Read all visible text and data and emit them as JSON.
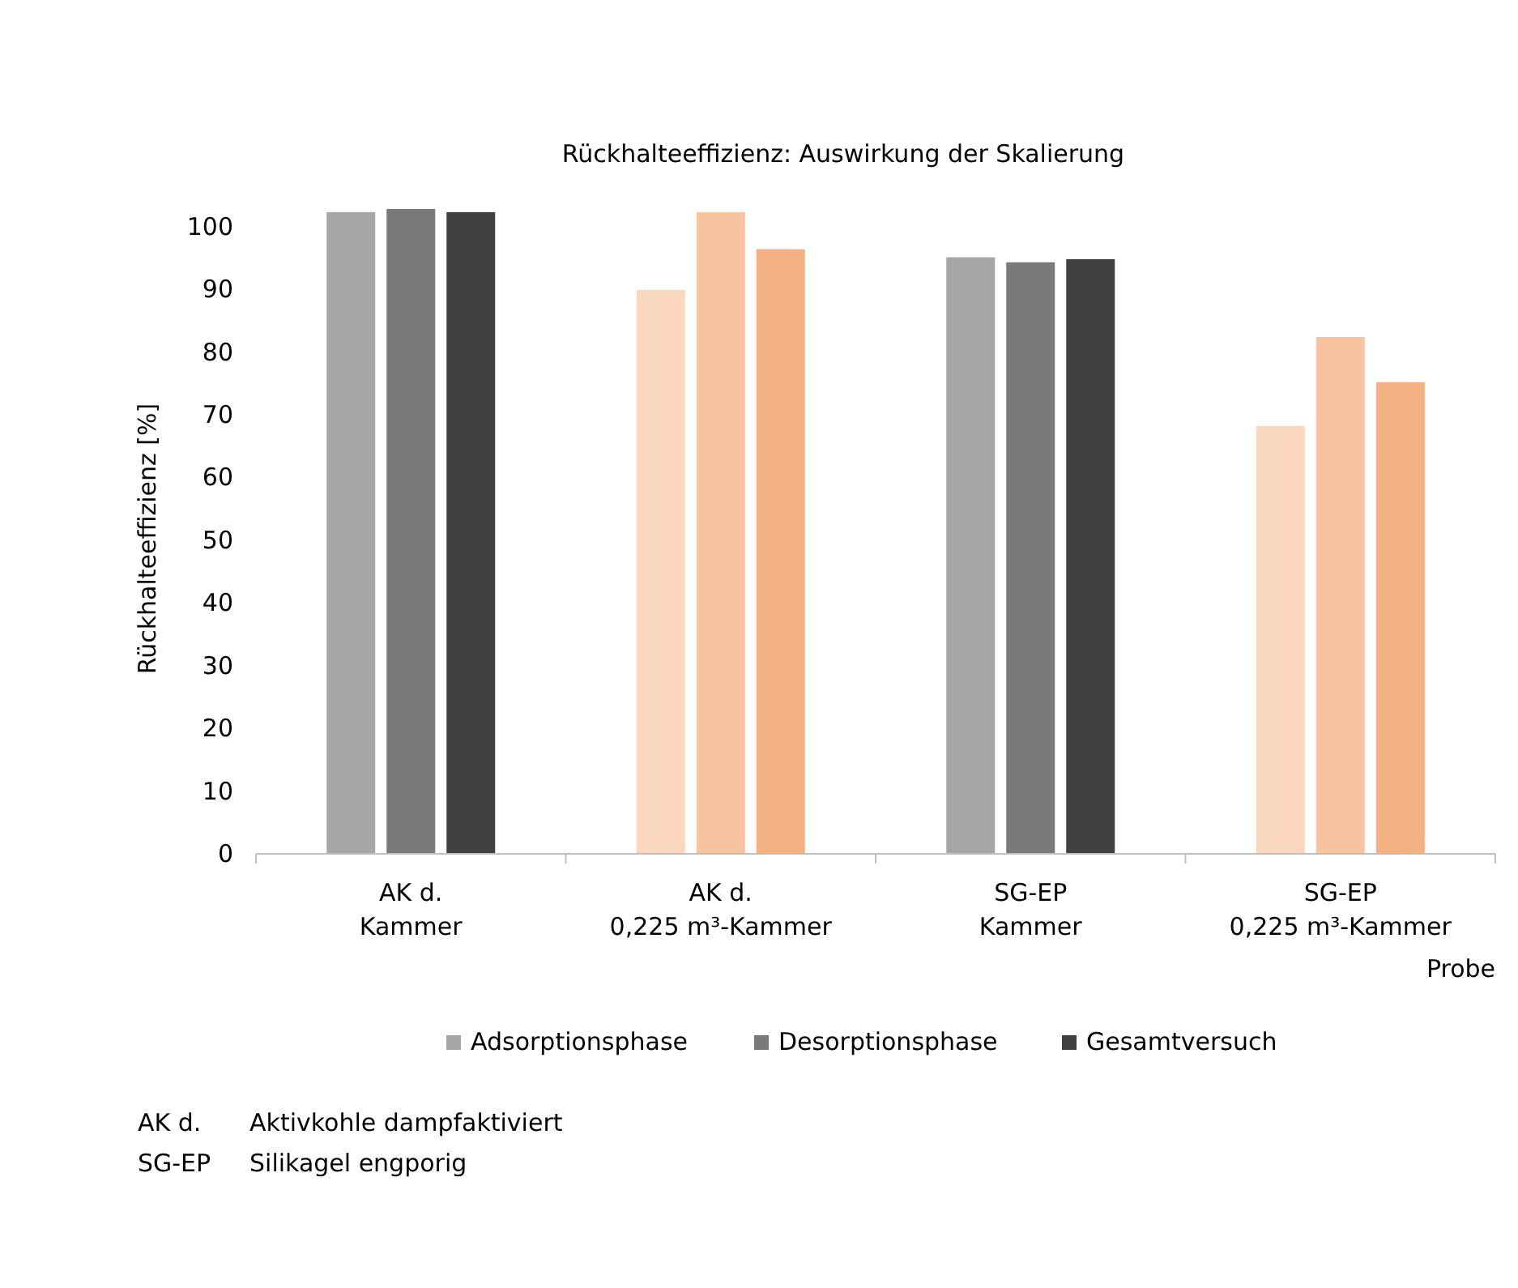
{
  "chart_data": {
    "type": "bar",
    "title": "Rückhalteeffizienz: Auswirkung der Skalierung",
    "xlabel": "Probe",
    "ylabel": "Rückhalteeffizienz [%]",
    "categories": [
      "AK d.\nKammer",
      "AK d.\n0,225 m³-Kammer",
      "SG-EP\nKammer",
      "SG-EP\n0,225 m³-Kammer"
    ],
    "series": [
      {
        "name": "Adsorptionsphase",
        "color": "#a6a6a6",
        "colors": [
          "#a6a6a6",
          "#fad7bf",
          "#a6a6a6",
          "#fad7bf"
        ],
        "values": [
          102.3,
          89.9,
          95.1,
          68.2
        ]
      },
      {
        "name": "Desorptionsphase",
        "color": "#7a7a7a",
        "colors": [
          "#7a7a7a",
          "#f8c4a0",
          "#7a7a7a",
          "#f8c4a0"
        ],
        "values": [
          102.8,
          102.3,
          94.3,
          82.4
        ]
      },
      {
        "name": "Gesamtversuch",
        "color": "#404040",
        "colors": [
          "#404040",
          "#f4b183",
          "#404040",
          "#f4b183"
        ],
        "values": [
          102.3,
          96.4,
          94.8,
          75.2
        ]
      }
    ],
    "ylim": [
      0,
      102.8
    ],
    "yticks": [
      0,
      10,
      20,
      30,
      40,
      50,
      60,
      70,
      80,
      90,
      100
    ],
    "grid": false,
    "legend": "bottom",
    "annotations": [
      "AK d.\tAktivkohle dampfaktiviert",
      "SG-EP\tSilikagel engporig"
    ]
  }
}
